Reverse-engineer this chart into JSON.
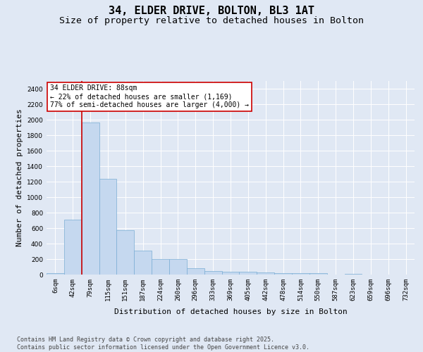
{
  "title1": "34, ELDER DRIVE, BOLTON, BL3 1AT",
  "title2": "Size of property relative to detached houses in Bolton",
  "xlabel": "Distribution of detached houses by size in Bolton",
  "ylabel": "Number of detached properties",
  "footer1": "Contains HM Land Registry data © Crown copyright and database right 2025.",
  "footer2": "Contains public sector information licensed under the Open Government Licence v3.0.",
  "annotation_title": "34 ELDER DRIVE: 88sqm",
  "annotation_line1": "← 22% of detached houses are smaller (1,169)",
  "annotation_line2": "77% of semi-detached houses are larger (4,000) →",
  "bar_labels": [
    "6sqm",
    "42sqm",
    "79sqm",
    "115sqm",
    "151sqm",
    "187sqm",
    "224sqm",
    "260sqm",
    "296sqm",
    "333sqm",
    "369sqm",
    "405sqm",
    "442sqm",
    "478sqm",
    "514sqm",
    "550sqm",
    "587sqm",
    "623sqm",
    "659sqm",
    "696sqm",
    "732sqm"
  ],
  "bar_values": [
    15,
    710,
    1960,
    1240,
    570,
    305,
    200,
    200,
    80,
    50,
    35,
    35,
    30,
    20,
    15,
    15,
    0,
    12,
    0,
    0,
    0
  ],
  "bar_color": "#c5d8ef",
  "bar_edge_color": "#7aadd4",
  "vline_x": 1.5,
  "vline_color": "#cc0000",
  "background_color": "#e0e8f4",
  "plot_bg_color": "#e0e8f4",
  "ylim": [
    0,
    2500
  ],
  "yticks": [
    0,
    200,
    400,
    600,
    800,
    1000,
    1200,
    1400,
    1600,
    1800,
    2000,
    2200,
    2400
  ],
  "grid_color": "#ffffff",
  "title_fontsize": 11,
  "subtitle_fontsize": 9.5,
  "label_fontsize": 8,
  "tick_fontsize": 6.5,
  "footer_fontsize": 6,
  "annot_fontsize": 7
}
